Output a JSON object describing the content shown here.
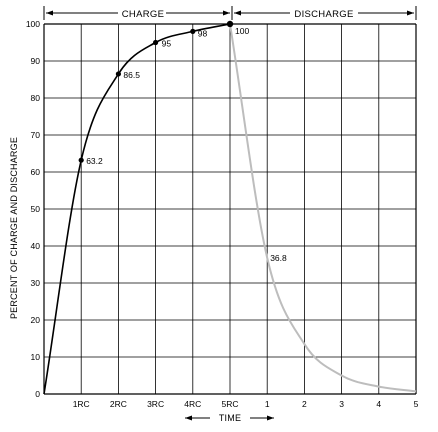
{
  "chart_data": {
    "type": "line",
    "ylabel": "PERCENT OF CHARGE AND DISCHARGE",
    "xlabel": "TIME",
    "header_labels": [
      "CHARGE",
      "DISCHARGE"
    ],
    "ylim": [
      0,
      100
    ],
    "y_ticks": [
      "0",
      "10",
      "20",
      "30",
      "40",
      "50",
      "60",
      "70",
      "80",
      "90",
      "100"
    ],
    "x_ticks": [
      "1RC",
      "2RC",
      "3RC",
      "4RC",
      "5RC",
      "1",
      "2",
      "3",
      "4",
      "5"
    ],
    "grid": true,
    "series": [
      {
        "name": "CHARGE",
        "color": "#000000",
        "x": [
          0,
          1,
          2,
          3,
          4,
          5
        ],
        "y": [
          0,
          63.2,
          86.5,
          95,
          98,
          100
        ]
      },
      {
        "name": "DISCHARGE",
        "color": "#bdbdbd",
        "x": [
          5,
          6,
          7,
          8,
          9,
          10
        ],
        "y": [
          100,
          36.8,
          13.5,
          5,
          2,
          0.7
        ]
      }
    ],
    "data_labels": [
      {
        "x": 1,
        "y": 63.2,
        "text": "63.2"
      },
      {
        "x": 2,
        "y": 86.5,
        "text": "86.5"
      },
      {
        "x": 3,
        "y": 95,
        "text": "95"
      },
      {
        "x": 4,
        "y": 98,
        "text": "98"
      },
      {
        "x": 5,
        "y": 100,
        "text": "100"
      },
      {
        "x": 6,
        "y": 36.8,
        "text": "36.8"
      }
    ]
  }
}
